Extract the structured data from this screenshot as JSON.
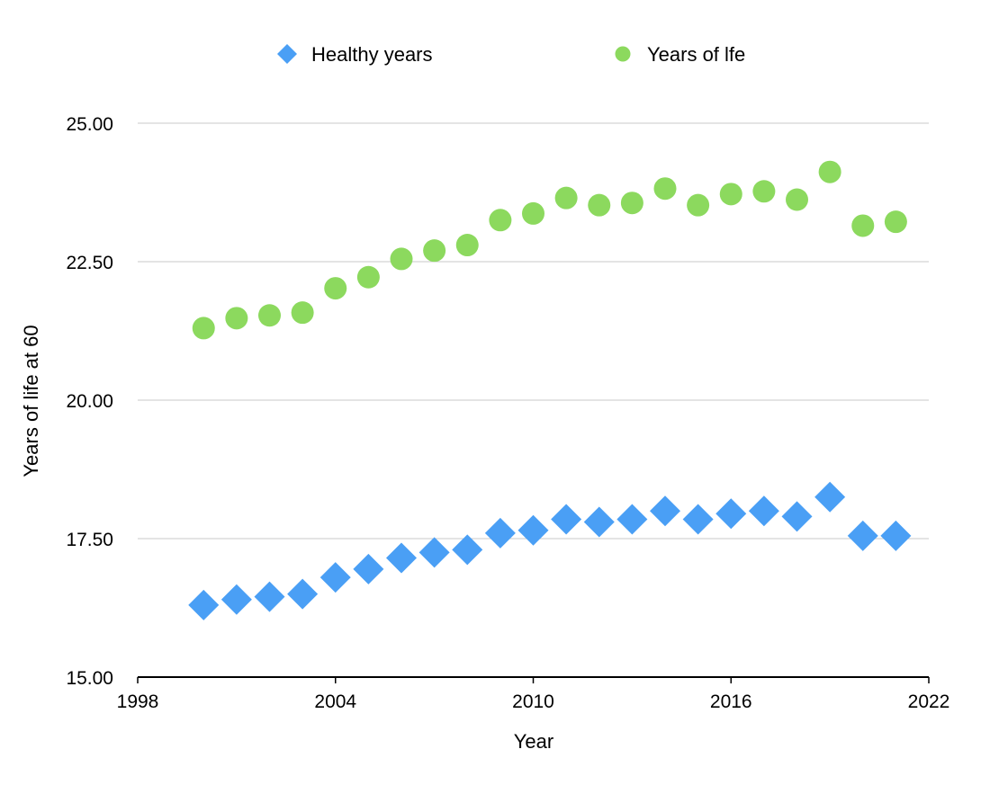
{
  "chart_data": {
    "type": "scatter",
    "title": "",
    "xlabel": "Year",
    "ylabel": "Years of life at 60",
    "xlim": [
      1998,
      2022
    ],
    "ylim": [
      15,
      25
    ],
    "x_ticks": [
      "1998",
      "2004",
      "2010",
      "2016",
      "2022"
    ],
    "y_ticks": [
      "15.00",
      "17.50",
      "20.00",
      "22.50",
      "25.00"
    ],
    "grid": "horizontal",
    "legend_position": "top",
    "x": [
      2000,
      2001,
      2002,
      2003,
      2004,
      2005,
      2006,
      2007,
      2008,
      2009,
      2010,
      2011,
      2012,
      2013,
      2014,
      2015,
      2016,
      2017,
      2018,
      2019,
      2020,
      2021
    ],
    "series": [
      {
        "name": "Healthy years",
        "marker": "diamond",
        "color": "#4a9ff5",
        "values": [
          16.3,
          16.4,
          16.45,
          16.5,
          16.8,
          16.95,
          17.15,
          17.25,
          17.3,
          17.6,
          17.65,
          17.85,
          17.8,
          17.85,
          18.0,
          17.85,
          17.95,
          18.0,
          17.9,
          18.25,
          17.55,
          17.55
        ]
      },
      {
        "name": "Years of lfe",
        "marker": "circle",
        "color": "#8cd95e",
        "values": [
          21.3,
          21.48,
          21.53,
          21.58,
          22.02,
          22.22,
          22.55,
          22.7,
          22.8,
          23.25,
          23.37,
          23.65,
          23.52,
          23.56,
          23.82,
          23.52,
          23.72,
          23.77,
          23.62,
          24.12,
          23.15,
          23.22
        ]
      }
    ]
  }
}
